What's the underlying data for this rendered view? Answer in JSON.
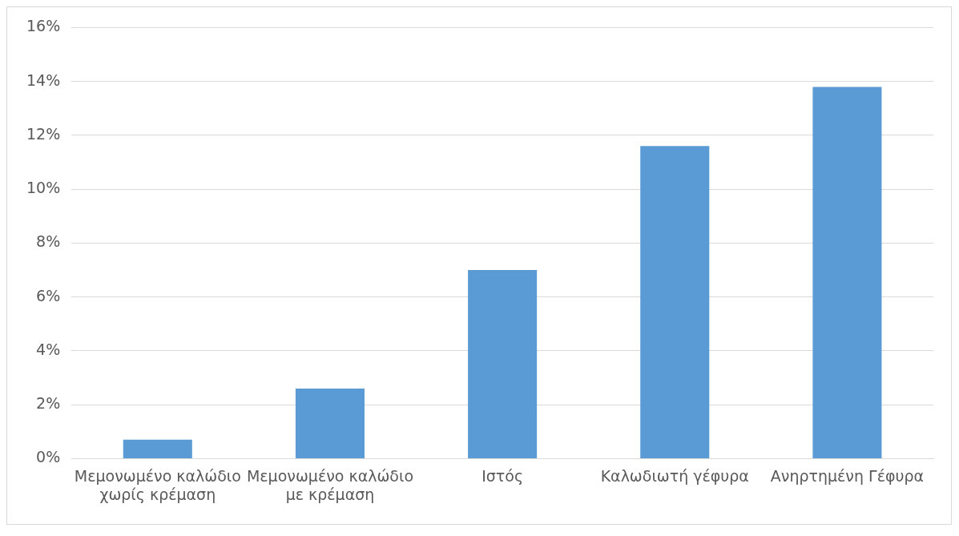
{
  "chart_data": {
    "type": "bar",
    "categories": [
      "Μεμονωμένο καλώδιο χωρίς κρέμαση",
      "Μεμονωμένο καλώδιο με κρέμαση",
      "Ιστός",
      "Καλωδιωτή γέφυρα",
      "Ανηρτημένη Γέφυρα"
    ],
    "values": [
      0.7,
      2.6,
      7.0,
      11.6,
      13.8
    ],
    "color": "#5b9bd5",
    "ylim": [
      0,
      16
    ],
    "yticks": [
      {
        "value": 0,
        "label": "0%"
      },
      {
        "value": 2,
        "label": "2%"
      },
      {
        "value": 4,
        "label": "4%"
      },
      {
        "value": 6,
        "label": "6%"
      },
      {
        "value": 8,
        "label": "8%"
      },
      {
        "value": 10,
        "label": "10%"
      },
      {
        "value": 12,
        "label": "12%"
      },
      {
        "value": 14,
        "label": "14%"
      },
      {
        "value": 16,
        "label": "16%"
      }
    ],
    "grid": "y"
  }
}
